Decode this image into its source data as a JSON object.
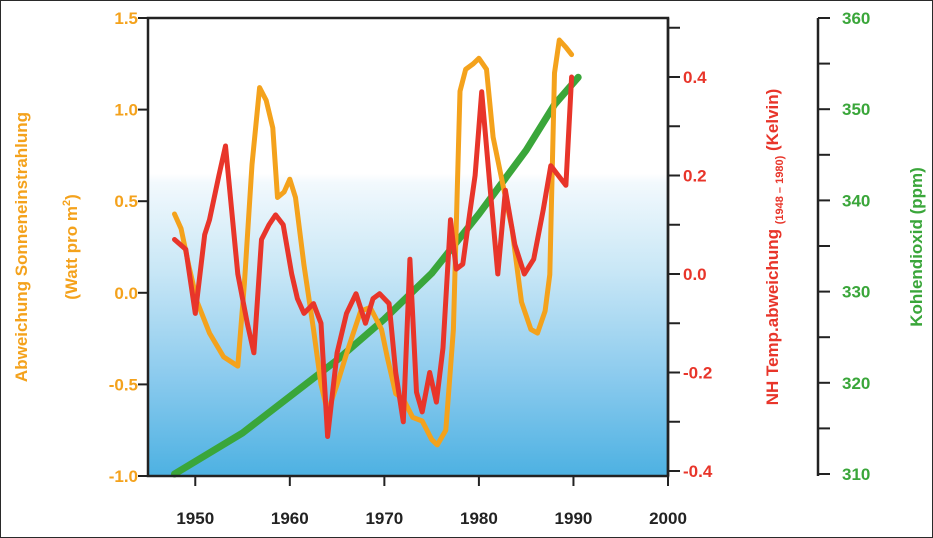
{
  "chart_data": {
    "type": "line",
    "x_ticks": [
      1950,
      1960,
      1970,
      1980,
      1990,
      2000
    ],
    "xlim": [
      1945,
      2000
    ],
    "axes": {
      "left": {
        "label_line1": "Abweichung Sonneneinstrahlung",
        "label_line2_prefix": "(Watt pro m",
        "label_line2_sup": "2",
        "label_line2_suffix": ")",
        "ylim": [
          -1.0,
          1.5
        ],
        "ticks": [
          "-1.0",
          "-0.5",
          "0.0",
          "0.5",
          "1.0",
          "1.5"
        ],
        "color": "#f4a21c"
      },
      "right1": {
        "label_main": "NH Temp.abweichung ",
        "label_sub": "(1948 – 1980)",
        "label_tail": " (Kelvin)",
        "ylim": [
          -0.4,
          0.5
        ],
        "ticks": [
          "-0.4",
          "-0.2",
          "0.0",
          "0.2",
          "0.4"
        ],
        "color": "#e8352a"
      },
      "right2": {
        "label": "Kohlendioxid (ppm)",
        "ylim": [
          310,
          360
        ],
        "ticks": [
          "310",
          "320",
          "330",
          "340",
          "350",
          "360"
        ],
        "color": "#3aa63a"
      }
    },
    "series": [
      {
        "axis": "left",
        "color": "#f4a21c",
        "points": [
          [
            1947.8,
            0.43
          ],
          [
            1948.5,
            0.35
          ],
          [
            1949.3,
            0.15
          ],
          [
            1950.2,
            -0.05
          ],
          [
            1951.5,
            -0.22
          ],
          [
            1953,
            -0.35
          ],
          [
            1954.5,
            -0.4
          ],
          [
            1955.2,
            0.05
          ],
          [
            1956,
            0.7
          ],
          [
            1956.8,
            1.12
          ],
          [
            1957.5,
            1.05
          ],
          [
            1958.2,
            0.9
          ],
          [
            1958.7,
            0.52
          ],
          [
            1959.4,
            0.55
          ],
          [
            1960,
            0.62
          ],
          [
            1960.6,
            0.52
          ],
          [
            1961.5,
            0.15
          ],
          [
            1962.5,
            -0.2
          ],
          [
            1963.3,
            -0.5
          ],
          [
            1964,
            -0.65
          ],
          [
            1965,
            -0.5
          ],
          [
            1966.2,
            -0.3
          ],
          [
            1967.5,
            -0.1
          ],
          [
            1968.5,
            -0.08
          ],
          [
            1969.7,
            -0.2
          ],
          [
            1970.3,
            -0.35
          ],
          [
            1971.2,
            -0.55
          ],
          [
            1972,
            -0.58
          ],
          [
            1973,
            -0.68
          ],
          [
            1974,
            -0.7
          ],
          [
            1975,
            -0.8
          ],
          [
            1975.6,
            -0.83
          ],
          [
            1976.5,
            -0.75
          ],
          [
            1977.3,
            -0.2
          ],
          [
            1978,
            1.1
          ],
          [
            1978.6,
            1.22
          ],
          [
            1979.4,
            1.25
          ],
          [
            1980,
            1.28
          ],
          [
            1980.8,
            1.22
          ],
          [
            1981.5,
            0.85
          ],
          [
            1982.5,
            0.6
          ],
          [
            1983.5,
            0.35
          ],
          [
            1984.5,
            -0.05
          ],
          [
            1985.5,
            -0.2
          ],
          [
            1986.2,
            -0.22
          ],
          [
            1987,
            -0.1
          ],
          [
            1987.5,
            0.1
          ],
          [
            1988,
            1.2
          ],
          [
            1988.5,
            1.38
          ],
          [
            1989.2,
            1.34
          ],
          [
            1989.8,
            1.3
          ]
        ]
      },
      {
        "axis": "right1",
        "color": "#e8352a",
        "points": [
          [
            1947.8,
            0.07
          ],
          [
            1949,
            0.05
          ],
          [
            1950,
            -0.08
          ],
          [
            1951,
            0.08
          ],
          [
            1951.5,
            0.11
          ],
          [
            1952.5,
            0.2
          ],
          [
            1953.2,
            0.26
          ],
          [
            1954.5,
            0.0
          ],
          [
            1955.5,
            -0.1
          ],
          [
            1956.2,
            -0.16
          ],
          [
            1957,
            0.07
          ],
          [
            1957.8,
            0.1
          ],
          [
            1958.5,
            0.12
          ],
          [
            1959.3,
            0.1
          ],
          [
            1960.2,
            0.0
          ],
          [
            1960.8,
            -0.05
          ],
          [
            1961.5,
            -0.08
          ],
          [
            1962.5,
            -0.06
          ],
          [
            1963.3,
            -0.1
          ],
          [
            1964,
            -0.33
          ],
          [
            1965,
            -0.16
          ],
          [
            1966,
            -0.08
          ],
          [
            1967,
            -0.04
          ],
          [
            1968,
            -0.1
          ],
          [
            1968.8,
            -0.05
          ],
          [
            1969.5,
            -0.04
          ],
          [
            1970.5,
            -0.06
          ],
          [
            1971.2,
            -0.2
          ],
          [
            1972,
            -0.3
          ],
          [
            1972.7,
            0.03
          ],
          [
            1973.4,
            -0.24
          ],
          [
            1974,
            -0.28
          ],
          [
            1974.8,
            -0.2
          ],
          [
            1975.5,
            -0.26
          ],
          [
            1976.2,
            -0.15
          ],
          [
            1977,
            0.11
          ],
          [
            1977.6,
            0.01
          ],
          [
            1978.3,
            0.02
          ],
          [
            1979,
            0.12
          ],
          [
            1979.6,
            0.2
          ],
          [
            1980.3,
            0.37
          ],
          [
            1981.2,
            0.17
          ],
          [
            1982,
            0.0
          ],
          [
            1982.8,
            0.17
          ],
          [
            1983.8,
            0.06
          ],
          [
            1984.8,
            0.0
          ],
          [
            1985.8,
            0.03
          ],
          [
            1986.8,
            0.13
          ],
          [
            1987.6,
            0.22
          ],
          [
            1988.4,
            0.2
          ],
          [
            1989.2,
            0.18
          ],
          [
            1989.8,
            0.4
          ]
        ]
      },
      {
        "axis": "right2",
        "color": "#3aa63a",
        "points": [
          [
            1947.8,
            310
          ],
          [
            1955,
            314.5
          ],
          [
            1960,
            318.5
          ],
          [
            1965,
            322.5
          ],
          [
            1970,
            327
          ],
          [
            1975,
            332
          ],
          [
            1980,
            338.5
          ],
          [
            1985,
            345.5
          ],
          [
            1988,
            350.5
          ],
          [
            1990.5,
            353.5
          ]
        ]
      }
    ],
    "background": {
      "top_color": "#ffffff",
      "bottom_color": "#4db1e2"
    },
    "grid": false,
    "legend": "none",
    "title": ""
  }
}
